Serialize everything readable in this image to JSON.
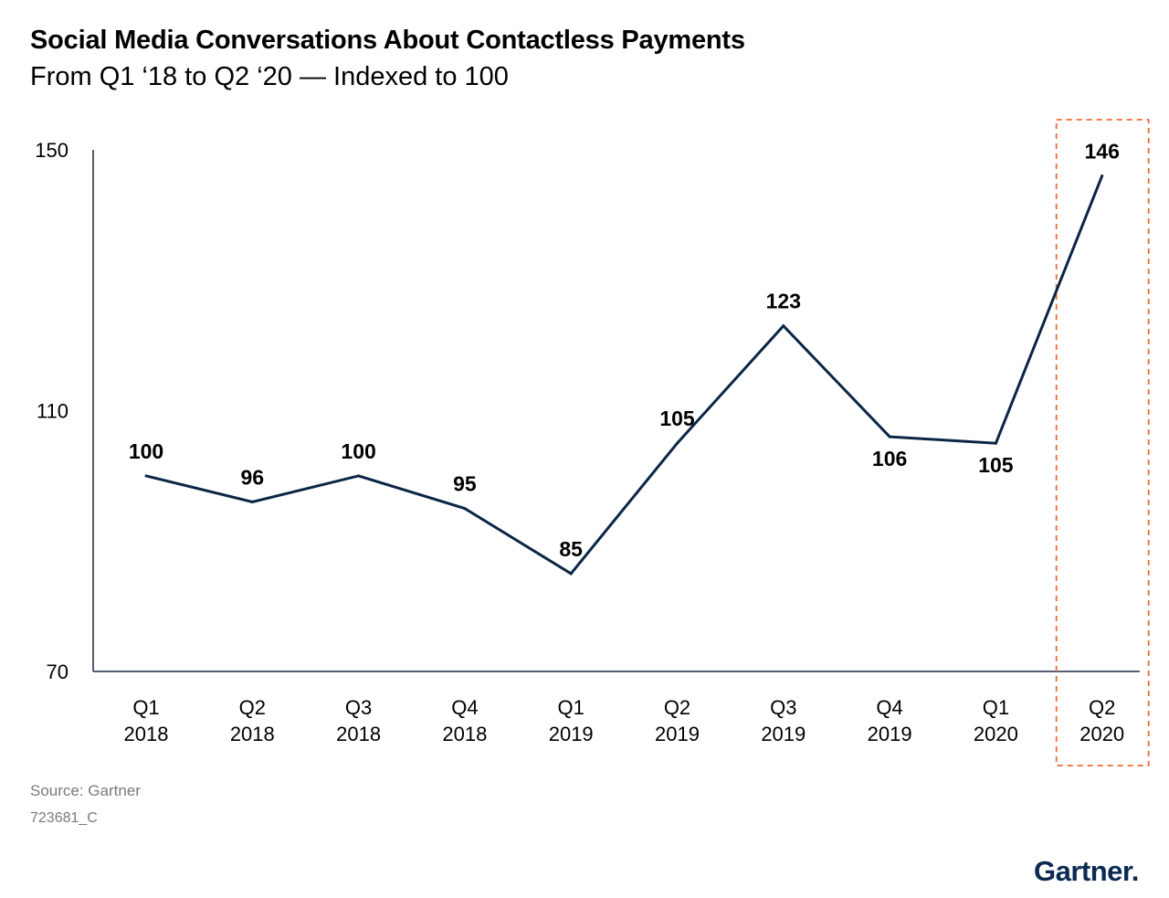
{
  "title": "Social Media Conversations About Contactless Payments",
  "subtitle": "From Q1 ‘18 to Q2 ‘20 — Indexed to 100",
  "source": "Source: Gartner",
  "doc_id": "723681_C",
  "logo": "Gartner",
  "logo_dot": ".",
  "colors": {
    "line": "#0b2545",
    "axis": "#1f2a44",
    "highlight": "#f06a35",
    "text": "#000000",
    "footer": "#7a7a7a"
  },
  "chart_data": {
    "type": "line",
    "title": "Social Media Conversations About Contactless Payments",
    "subtitle": "From Q1 ‘18 to Q2 ‘20 — Indexed to 100",
    "xlabel": "",
    "ylabel": "",
    "categories": [
      [
        "Q1",
        "2018"
      ],
      [
        "Q2",
        "2018"
      ],
      [
        "Q3",
        "2018"
      ],
      [
        "Q4",
        "2018"
      ],
      [
        "Q1",
        "2019"
      ],
      [
        "Q2",
        "2019"
      ],
      [
        "Q3",
        "2019"
      ],
      [
        "Q4",
        "2019"
      ],
      [
        "Q1",
        "2020"
      ],
      [
        "Q2",
        "2020"
      ]
    ],
    "values": [
      100,
      96,
      100,
      95,
      85,
      105,
      123,
      106,
      105,
      146
    ],
    "ylim": [
      70,
      150
    ],
    "yticks": [
      70,
      110,
      150
    ],
    "grid": false,
    "legend": "none",
    "highlight_category_index": 9,
    "label_position": [
      "above",
      "above",
      "above",
      "above",
      "above",
      "above",
      "above",
      "below",
      "below",
      "above"
    ]
  }
}
